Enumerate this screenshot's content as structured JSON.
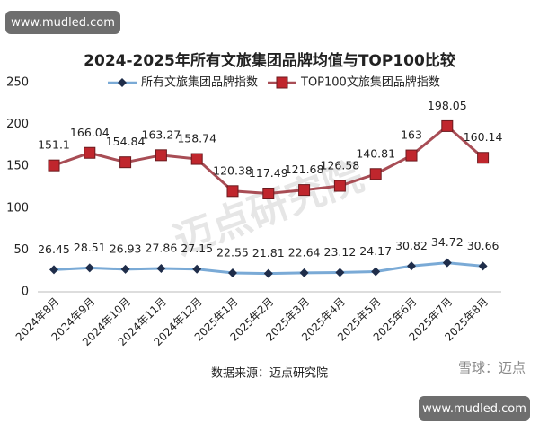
{
  "chart_data": {
    "type": "line",
    "title": "2024-2025年所有文旅集团品牌均值与TOP100比较",
    "categories": [
      "2024年8月",
      "2024年9月",
      "2024年10月",
      "2024年11月",
      "2024年12月",
      "2025年1月",
      "2025年2月",
      "2025年3月",
      "2025年4月",
      "2025年5月",
      "2025年6月",
      "2025年7月",
      "2025年8月"
    ],
    "series": [
      {
        "name": "所有文旅集团品牌指数",
        "color": "#1f2d4a",
        "line_color": "#7aaad6",
        "marker": "diamond",
        "values": [
          26.45,
          28.51,
          26.93,
          27.86,
          27.15,
          22.55,
          21.81,
          22.64,
          23.12,
          24.17,
          30.82,
          34.72,
          30.66
        ]
      },
      {
        "name": "TOP100文旅集团品牌指数",
        "color": "#c0262d",
        "line_color": "#a84d55",
        "marker": "square",
        "values": [
          151.1,
          166.04,
          154.84,
          163.27,
          158.74,
          120.38,
          117.49,
          121.68,
          126.58,
          140.81,
          163,
          198.05,
          160.14
        ]
      }
    ],
    "ylim": [
      0,
      250
    ],
    "yticks": [
      0,
      50,
      100,
      150,
      200,
      250
    ],
    "grid": false,
    "source": "数据来源：迈点研究院"
  },
  "overlays": {
    "top_watermark": "www.mudled.com",
    "bottom_watermark": "www.mudled.com",
    "xueqiu": "雪球：迈点",
    "center_watermark": "迈点研究院"
  }
}
